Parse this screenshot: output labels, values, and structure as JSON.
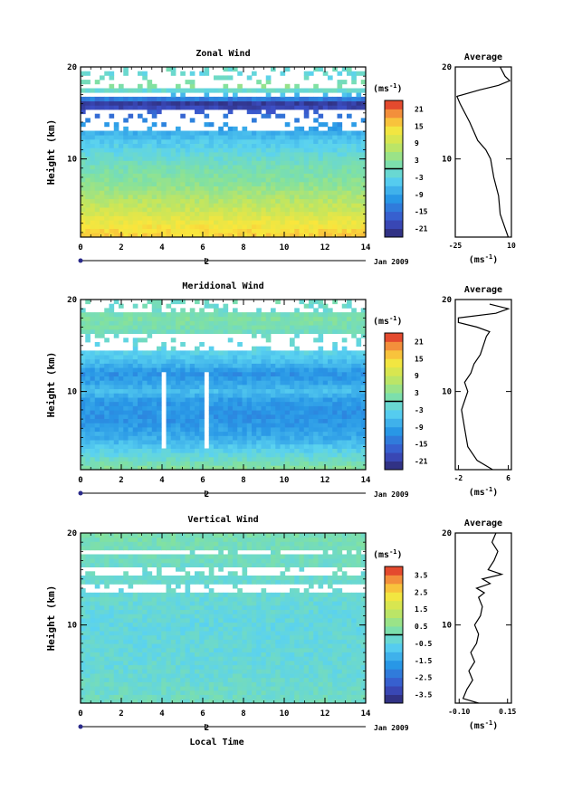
{
  "chart_data": [
    {
      "type": "heatmap",
      "title": "Zonal Wind",
      "ylabel": "Height (km)",
      "xlabel": "",
      "x_ticks": [
        "0",
        "2",
        "4",
        "6",
        "8",
        "10",
        "12",
        "14"
      ],
      "y_ticks": [
        "10",
        "20"
      ],
      "xlim": [
        0,
        14
      ],
      "ylim": [
        1.5,
        20
      ],
      "date_axis_label": "2",
      "date_axis_unit": "Jan 2009",
      "colorbar": {
        "unit": "(ms",
        "unit_sup": "-1",
        "unit_close": ")",
        "ticks": [
          "21",
          "15",
          "9",
          "3",
          "-3",
          "-9",
          "-15",
          "-21"
        ],
        "range": [
          -24,
          24
        ]
      },
      "series": [
        {
          "height_km": [
            1.5,
            3,
            4.5,
            6,
            7.5,
            9,
            10,
            11,
            12,
            13,
            14,
            15,
            16,
            17,
            18,
            19,
            20
          ],
          "value_ms": [
            16,
            13,
            9,
            6,
            3,
            1,
            -1,
            -3,
            -5,
            -8,
            -12,
            -16,
            -22,
            -6,
            4,
            -3,
            0
          ]
        }
      ],
      "average": {
        "title": "Average",
        "xlabel": "(ms",
        "xlabel_sup": "-1",
        "xlabel_close": ")",
        "x_ticks": [
          "-25",
          "10"
        ],
        "xlim": [
          -25,
          10
        ],
        "points": [
          [
            8,
            1.5
          ],
          [
            6,
            2.5
          ],
          [
            3,
            4
          ],
          [
            2,
            6
          ],
          [
            -1,
            8
          ],
          [
            -3,
            10
          ],
          [
            -6,
            11
          ],
          [
            -11,
            12
          ],
          [
            -16,
            14
          ],
          [
            -22,
            16
          ],
          [
            -24,
            16.8
          ],
          [
            -10,
            17.5
          ],
          [
            2,
            18
          ],
          [
            9,
            18.5
          ],
          [
            6,
            19
          ],
          [
            3,
            20
          ]
        ]
      }
    },
    {
      "type": "heatmap",
      "title": "Meridional Wind",
      "ylabel": "Height (km)",
      "xlabel": "",
      "x_ticks": [
        "0",
        "2",
        "4",
        "6",
        "8",
        "10",
        "12",
        "14"
      ],
      "y_ticks": [
        "10",
        "20"
      ],
      "xlim": [
        0,
        14
      ],
      "ylim": [
        1.5,
        20
      ],
      "date_axis_label": "2",
      "date_axis_unit": "Jan 2009",
      "colorbar": {
        "unit": "(ms",
        "unit_sup": "-1",
        "unit_close": ")",
        "ticks": [
          "21",
          "15",
          "9",
          "3",
          "-3",
          "-9",
          "-15",
          "-21"
        ],
        "range": [
          -24,
          24
        ]
      },
      "series": [
        {
          "height_km": [
            1.5,
            3,
            5,
            7,
            9,
            10,
            11,
            12,
            13,
            14,
            15,
            16,
            17,
            18,
            19,
            20
          ],
          "value_ms": [
            3,
            -2,
            -8,
            -11,
            -10,
            -6,
            -9,
            -11,
            -7,
            -4,
            -2,
            -1,
            1,
            2,
            -1,
            0
          ]
        }
      ],
      "average": {
        "title": "Average",
        "xlabel": "(ms",
        "xlabel_sup": "-1",
        "xlabel_close": ")",
        "x_ticks": [
          "-2",
          "6"
        ],
        "xlim": [
          -2.5,
          6.5
        ],
        "points": [
          [
            3.5,
            1.5
          ],
          [
            1,
            2.5
          ],
          [
            -0.5,
            4
          ],
          [
            -1,
            6
          ],
          [
            -1.5,
            8
          ],
          [
            -0.5,
            10
          ],
          [
            -1,
            11
          ],
          [
            0,
            12
          ],
          [
            0.5,
            13
          ],
          [
            1.5,
            14
          ],
          [
            2,
            15
          ],
          [
            2.5,
            16
          ],
          [
            3,
            16.5
          ],
          [
            1,
            17
          ],
          [
            -2,
            17.5
          ],
          [
            -2,
            18
          ],
          [
            4,
            18.5
          ],
          [
            6,
            19
          ],
          [
            3,
            19.5
          ]
        ]
      }
    },
    {
      "type": "heatmap",
      "title": "Vertical Wind",
      "ylabel": "Height (km)",
      "xlabel": "Local Time",
      "x_ticks": [
        "0",
        "2",
        "4",
        "6",
        "8",
        "10",
        "12",
        "14"
      ],
      "y_ticks": [
        "10",
        "20"
      ],
      "xlim": [
        0,
        14
      ],
      "ylim": [
        1.5,
        20
      ],
      "date_axis_label": "2",
      "date_axis_unit": "Jan 2009",
      "colorbar": {
        "unit": "(ms",
        "unit_sup": "-1",
        "unit_close": ")",
        "ticks": [
          "3.5",
          "2.5",
          "1.5",
          "0.5",
          "-0.5",
          "-1.5",
          "-2.5",
          "-3.5"
        ],
        "range": [
          -4,
          4
        ]
      },
      "series": [
        {
          "height_km": [
            1.5,
            5,
            10,
            15,
            20
          ],
          "value_ms": [
            0,
            -0.3,
            -0.4,
            -0.2,
            0.2
          ]
        }
      ],
      "average": {
        "title": "Average",
        "xlabel": "(ms",
        "xlabel_sup": "-1",
        "xlabel_close": ")",
        "x_ticks": [
          "-0.10",
          "0.15"
        ],
        "xlim": [
          -0.12,
          0.17
        ],
        "points": [
          [
            0,
            1.5
          ],
          [
            -0.08,
            2
          ],
          [
            -0.06,
            3
          ],
          [
            -0.03,
            4
          ],
          [
            -0.05,
            5
          ],
          [
            -0.02,
            6
          ],
          [
            -0.04,
            7
          ],
          [
            -0.01,
            8
          ],
          [
            0.0,
            9
          ],
          [
            -0.02,
            10
          ],
          [
            0.01,
            11
          ],
          [
            0.02,
            12
          ],
          [
            0.0,
            13
          ],
          [
            0.03,
            13.5
          ],
          [
            -0.01,
            14
          ],
          [
            0.06,
            14.5
          ],
          [
            0.02,
            15
          ],
          [
            0.12,
            15.5
          ],
          [
            0.05,
            16
          ],
          [
            0.08,
            17
          ],
          [
            0.1,
            18
          ],
          [
            0.07,
            19
          ],
          [
            0.09,
            20
          ]
        ]
      }
    }
  ]
}
